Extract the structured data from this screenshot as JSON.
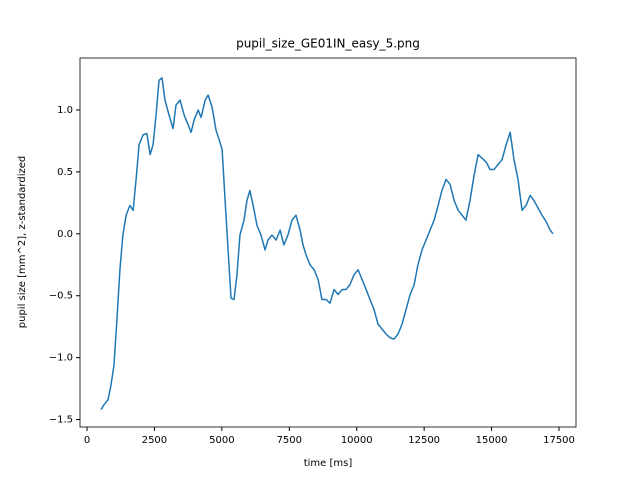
{
  "chart_data": {
    "type": "line",
    "title": "pupil_size_GE01IN_easy_5.png",
    "xlabel": "time [ms]",
    "ylabel": "pupil size [mm^2], z-standardized",
    "x": [
      520,
      630,
      780,
      890,
      1000,
      1110,
      1220,
      1330,
      1450,
      1590,
      1710,
      1820,
      1930,
      2080,
      2220,
      2340,
      2450,
      2560,
      2670,
      2780,
      2890,
      3040,
      3190,
      3300,
      3450,
      3600,
      3750,
      3860,
      3970,
      4120,
      4230,
      4380,
      4490,
      4640,
      4780,
      4900,
      5010,
      5120,
      5230,
      5340,
      5450,
      5560,
      5670,
      5820,
      5930,
      6040,
      6160,
      6300,
      6450,
      6600,
      6710,
      6860,
      7010,
      7160,
      7300,
      7450,
      7600,
      7750,
      7900,
      8010,
      8120,
      8270,
      8420,
      8570,
      8710,
      8860,
      9010,
      9160,
      9310,
      9460,
      9600,
      9750,
      9900,
      10050,
      10200,
      10350,
      10490,
      10640,
      10790,
      10940,
      11090,
      11240,
      11380,
      11530,
      11680,
      11830,
      11980,
      12130,
      12270,
      12420,
      12570,
      12720,
      12870,
      13020,
      13160,
      13310,
      13460,
      13610,
      13760,
      13910,
      14050,
      14200,
      14350,
      14500,
      14650,
      14800,
      14940,
      15090,
      15240,
      15390,
      15540,
      15690,
      15830,
      15980,
      16130,
      16280,
      16430,
      16570,
      16720,
      16870,
      17020,
      17170,
      17280
    ],
    "series": [
      {
        "color": "#1f77b4",
        "values": [
          -1.42,
          -1.38,
          -1.34,
          -1.22,
          -1.06,
          -0.69,
          -0.29,
          -0.01,
          0.15,
          0.23,
          0.19,
          0.44,
          0.72,
          0.8,
          0.81,
          0.64,
          0.72,
          0.96,
          1.24,
          1.26,
          1.08,
          0.96,
          0.85,
          1.04,
          1.08,
          0.96,
          0.88,
          0.82,
          0.92,
          1.0,
          0.94,
          1.08,
          1.12,
          1.02,
          0.84,
          0.76,
          0.68,
          0.27,
          -0.13,
          -0.52,
          -0.53,
          -0.33,
          -0.01,
          0.11,
          0.27,
          0.35,
          0.23,
          0.07,
          -0.01,
          -0.13,
          -0.05,
          -0.01,
          -0.05,
          0.03,
          -0.09,
          -0.01,
          0.11,
          0.15,
          0.03,
          -0.09,
          -0.17,
          -0.25,
          -0.29,
          -0.37,
          -0.53,
          -0.53,
          -0.56,
          -0.45,
          -0.49,
          -0.45,
          -0.45,
          -0.41,
          -0.33,
          -0.29,
          -0.37,
          -0.45,
          -0.53,
          -0.61,
          -0.73,
          -0.77,
          -0.81,
          -0.84,
          -0.85,
          -0.81,
          -0.73,
          -0.61,
          -0.49,
          -0.41,
          -0.25,
          -0.13,
          -0.05,
          0.03,
          0.11,
          0.23,
          0.35,
          0.44,
          0.4,
          0.27,
          0.19,
          0.15,
          0.11,
          0.27,
          0.47,
          0.64,
          0.61,
          0.58,
          0.52,
          0.52,
          0.56,
          0.6,
          0.72,
          0.82,
          0.6,
          0.44,
          0.19,
          0.23,
          0.31,
          0.27,
          0.21,
          0.15,
          0.1,
          0.03,
          0.0
        ]
      }
    ],
    "xlim": [
      -260,
      18130
    ],
    "ylim": [
      -1.56,
      1.42
    ],
    "xticks": [
      0,
      2500,
      5000,
      7500,
      10000,
      12500,
      15000,
      17500
    ],
    "yticks": [
      {
        "value": -1.5,
        "label": "−1.5"
      },
      {
        "value": -1.0,
        "label": "−1.0"
      },
      {
        "value": -0.5,
        "label": "−0.5"
      },
      {
        "value": 0,
        "label": "0.0"
      },
      {
        "value": 0.5,
        "label": "0.5"
      },
      {
        "value": 1.0,
        "label": "1.0"
      }
    ]
  }
}
